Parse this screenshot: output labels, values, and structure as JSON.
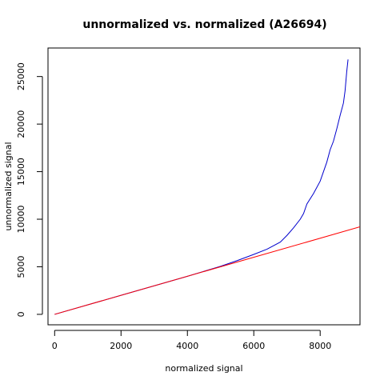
{
  "chart_data": {
    "type": "line",
    "title": "unnormalized vs. normalized (A26694)",
    "xlabel": "normalized signal",
    "ylabel": "unnormalized signal",
    "xlim": [
      -200,
      9200
    ],
    "ylim": [
      -1100,
      28000
    ],
    "xticks": [
      0,
      2000,
      4000,
      6000,
      8000
    ],
    "xtick_labels": [
      "0",
      "2000",
      "4000",
      "6000",
      "8000"
    ],
    "yticks": [
      0,
      5000,
      10000,
      15000,
      20000,
      25000
    ],
    "ytick_labels": [
      "0",
      "5000",
      "10000",
      "15000",
      "20000",
      "25000"
    ],
    "grid": false,
    "series": [
      {
        "color": "#0000cd",
        "x": [
          0,
          1000,
          2000,
          3000,
          4000,
          5000,
          5500,
          6000,
          6400,
          6800,
          7000,
          7200,
          7400,
          7500,
          7600,
          7800,
          8000,
          8100,
          8200,
          8300,
          8400,
          8500,
          8600,
          8700,
          8750,
          8800,
          8840
        ],
        "y": [
          0,
          1000,
          2000,
          3000,
          4000,
          5050,
          5650,
          6300,
          6850,
          7600,
          8300,
          9100,
          10000,
          10600,
          11600,
          12700,
          14000,
          15000,
          16000,
          17300,
          18200,
          19500,
          20900,
          22200,
          23500,
          25500,
          26800
        ]
      },
      {
        "color": "#ff0000",
        "x": [
          0,
          9200
        ],
        "y": [
          0,
          9200
        ]
      }
    ]
  }
}
